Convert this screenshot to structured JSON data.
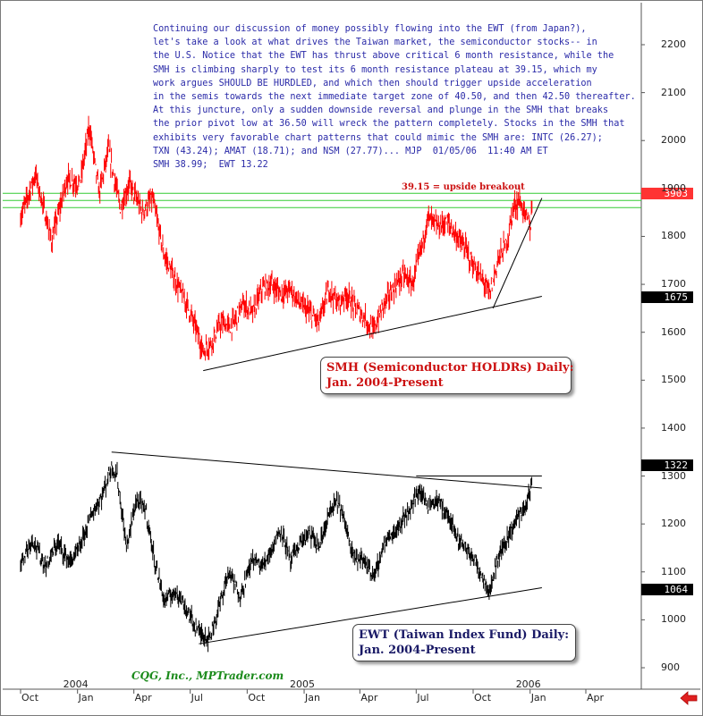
{
  "commentary": [
    "Continuing our discussion of money possibly flowing into the EWT (from Japan?),",
    "let's take a look at what drives the Taiwan market, the semiconductor stocks-- in",
    "the U.S. Notice that the EWT has thrust above critical 6 month resistance, while the",
    "SMH is climbing sharply to test its 6 month resistance plateau at 39.15, which my",
    "work argues SHOULD BE HURDLED, and which then should trigger upside acceleration",
    "in the semis towards the next immediate target zone of 40.50, and then 42.50 thereafter.",
    "At this juncture, only a sudden downside reversal and plunge in the SMH that breaks",
    "the prior pivot low at 36.50 will wreck the pattern completely. Stocks in the SMH that",
    "exhibits very favorable chart patterns that could mimic the SMH are: INTC (26.27);",
    "TXN (43.24); AMAT (18.71); and NSM (27.77)... MJP  01/05/06  11:40 AM ET",
    "SMH 38.99;  EWT 13.22"
  ],
  "annotations": {
    "breakout": "39.15 = upside breakout",
    "smh_box": [
      "SMH (Semiconductor HOLDRs) Daily:",
      "Jan. 2004-Present"
    ],
    "ewt_box": [
      "EWT (Taiwan Index Fund) Daily:",
      "Jan. 2004-Present"
    ],
    "credit": "CQG, Inc., MPTrader.com"
  },
  "price_flags": {
    "smh_last": "3903",
    "smh_pivot": "1675",
    "ewt_last": "1322",
    "ewt_low": "1064"
  },
  "colors": {
    "smh_series": "#ff0000",
    "ewt_series": "#000000",
    "resistance_lines": "#33cc33",
    "commentary_text": "#2a2aa8",
    "credit_text": "#1a8a1a"
  },
  "chart_data": {
    "type": "line",
    "yaxis": {
      "ticks": [
        900,
        1000,
        1100,
        1200,
        1300,
        1400,
        1500,
        1600,
        1700,
        1800,
        1900,
        2000,
        2100,
        2200
      ],
      "labels": [
        "900",
        "1000",
        "1100",
        "1200",
        "1300",
        "1400",
        "1500",
        "1600",
        "1700",
        "1800",
        "1900",
        "2000",
        "2100",
        "2200"
      ],
      "ylim": [
        850,
        2260
      ]
    },
    "xaxis": {
      "labels": [
        "Oct",
        "Jan",
        "Apr",
        "Jul",
        "Oct",
        "Jan",
        "Apr",
        "Jul",
        "Oct",
        "Jan",
        "Apr"
      ],
      "dates": [
        "2003-10",
        "2004-01",
        "2004-04",
        "2004-07",
        "2004-10",
        "2005-01",
        "2005-04",
        "2005-07",
        "2005-10",
        "2006-01",
        "2006-04"
      ],
      "years": [
        "2004",
        "2005",
        "2006"
      ]
    },
    "series": [
      {
        "id": "smh",
        "anchors": [
          [
            "2003-10-01",
            1840
          ],
          [
            "2003-10-25",
            1930
          ],
          [
            "2003-11-20",
            1790
          ],
          [
            "2003-12-15",
            1920
          ],
          [
            "2004-01-05",
            1910
          ],
          [
            "2004-01-20",
            2030
          ],
          [
            "2004-02-05",
            1890
          ],
          [
            "2004-02-20",
            1980
          ],
          [
            "2004-03-10",
            1860
          ],
          [
            "2004-03-25",
            1910
          ],
          [
            "2004-04-15",
            1850
          ],
          [
            "2004-05-01",
            1880
          ],
          [
            "2004-05-20",
            1760
          ],
          [
            "2004-06-10",
            1700
          ],
          [
            "2004-06-25",
            1660
          ],
          [
            "2004-07-10",
            1610
          ],
          [
            "2004-07-22",
            1560
          ],
          [
            "2004-08-05",
            1580
          ],
          [
            "2004-08-20",
            1620
          ],
          [
            "2004-09-05",
            1610
          ],
          [
            "2004-09-25",
            1660
          ],
          [
            "2004-10-10",
            1640
          ],
          [
            "2004-10-25",
            1690
          ],
          [
            "2004-11-10",
            1700
          ],
          [
            "2004-11-25",
            1680
          ],
          [
            "2004-12-10",
            1690
          ],
          [
            "2004-12-25",
            1660
          ],
          [
            "2005-01-10",
            1640
          ],
          [
            "2005-01-25",
            1620
          ],
          [
            "2005-02-10",
            1690
          ],
          [
            "2005-02-25",
            1660
          ],
          [
            "2005-03-10",
            1680
          ],
          [
            "2005-03-25",
            1650
          ],
          [
            "2005-04-10",
            1630
          ],
          [
            "2005-04-22",
            1600
          ],
          [
            "2005-05-10",
            1660
          ],
          [
            "2005-05-25",
            1690
          ],
          [
            "2005-06-10",
            1720
          ],
          [
            "2005-06-25",
            1700
          ],
          [
            "2005-07-10",
            1780
          ],
          [
            "2005-07-20",
            1840
          ],
          [
            "2005-08-05",
            1820
          ],
          [
            "2005-08-20",
            1830
          ],
          [
            "2005-09-05",
            1800
          ],
          [
            "2005-09-20",
            1770
          ],
          [
            "2005-10-05",
            1730
          ],
          [
            "2005-10-20",
            1700
          ],
          [
            "2005-10-28",
            1680
          ],
          [
            "2005-11-10",
            1750
          ],
          [
            "2005-11-25",
            1790
          ],
          [
            "2005-12-05",
            1860
          ],
          [
            "2005-12-15",
            1875
          ],
          [
            "2005-12-25",
            1840
          ],
          [
            "2006-01-02",
            1820
          ],
          [
            "2006-01-05",
            1890
          ]
        ]
      },
      {
        "id": "ewt",
        "anchors": [
          [
            "2003-10-01",
            1120
          ],
          [
            "2003-10-20",
            1170
          ],
          [
            "2003-11-10",
            1110
          ],
          [
            "2003-11-30",
            1160
          ],
          [
            "2003-12-20",
            1120
          ],
          [
            "2004-01-05",
            1150
          ],
          [
            "2004-01-20",
            1210
          ],
          [
            "2004-02-10",
            1260
          ],
          [
            "2004-02-25",
            1320
          ],
          [
            "2004-03-05",
            1300
          ],
          [
            "2004-03-20",
            1150
          ],
          [
            "2004-04-05",
            1250
          ],
          [
            "2004-04-20",
            1230
          ],
          [
            "2004-05-05",
            1120
          ],
          [
            "2004-05-20",
            1040
          ],
          [
            "2004-06-10",
            1060
          ],
          [
            "2004-06-25",
            1020
          ],
          [
            "2004-07-15",
            975
          ],
          [
            "2004-08-01",
            960
          ],
          [
            "2004-08-15",
            1020
          ],
          [
            "2004-09-01",
            1100
          ],
          [
            "2004-09-20",
            1050
          ],
          [
            "2004-10-10",
            1130
          ],
          [
            "2004-10-25",
            1110
          ],
          [
            "2004-11-10",
            1150
          ],
          [
            "2004-11-25",
            1190
          ],
          [
            "2004-12-10",
            1120
          ],
          [
            "2004-12-25",
            1160
          ],
          [
            "2005-01-10",
            1180
          ],
          [
            "2005-01-25",
            1150
          ],
          [
            "2005-02-10",
            1220
          ],
          [
            "2005-02-25",
            1250
          ],
          [
            "2005-03-10",
            1190
          ],
          [
            "2005-03-25",
            1130
          ],
          [
            "2005-04-10",
            1120
          ],
          [
            "2005-04-25",
            1090
          ],
          [
            "2005-05-10",
            1160
          ],
          [
            "2005-05-25",
            1180
          ],
          [
            "2005-06-10",
            1210
          ],
          [
            "2005-06-25",
            1240
          ],
          [
            "2005-07-05",
            1270
          ],
          [
            "2005-07-20",
            1240
          ],
          [
            "2005-08-05",
            1250
          ],
          [
            "2005-08-20",
            1220
          ],
          [
            "2005-09-05",
            1170
          ],
          [
            "2005-09-20",
            1150
          ],
          [
            "2005-10-05",
            1120
          ],
          [
            "2005-10-20",
            1080
          ],
          [
            "2005-10-28",
            1060
          ],
          [
            "2005-11-10",
            1130
          ],
          [
            "2005-11-25",
            1170
          ],
          [
            "2005-12-10",
            1210
          ],
          [
            "2005-12-25",
            1240
          ],
          [
            "2006-01-01",
            1260
          ],
          [
            "2006-01-05",
            1322
          ]
        ]
      }
    ],
    "horizontal_levels": [
      1860,
      1875,
      1890
    ],
    "trendlines": [
      {
        "series": "smh",
        "kind": "support",
        "from": [
          "2004-07-22",
          1520
        ],
        "to": [
          "2006-01-20",
          1675
        ]
      },
      {
        "series": "smh",
        "kind": "support",
        "from": [
          "2005-11-02",
          1650
        ],
        "to": [
          "2006-01-20",
          1880
        ]
      },
      {
        "series": "ewt",
        "kind": "resistance",
        "from": [
          "2004-02-25",
          1350
        ],
        "to": [
          "2006-01-20",
          1275
        ]
      },
      {
        "series": "ewt",
        "kind": "resistance",
        "from": [
          "2005-07-01",
          1300
        ],
        "to": [
          "2006-01-20",
          1300
        ]
      },
      {
        "series": "ewt",
        "kind": "support",
        "from": [
          "2004-07-15",
          950
        ],
        "to": [
          "2006-01-20",
          1067
        ]
      }
    ],
    "grid": false
  }
}
